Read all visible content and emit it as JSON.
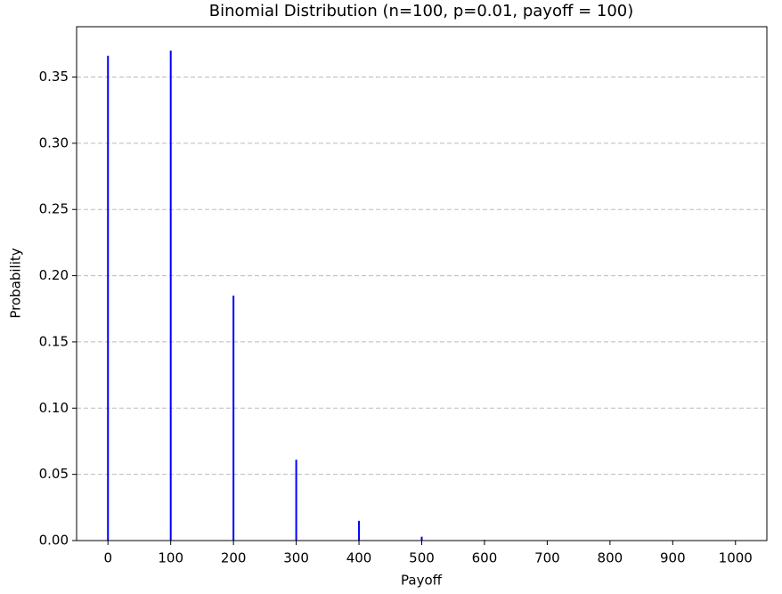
{
  "chart_data": {
    "type": "bar",
    "title": "Binomial Distribution (n=100, p=0.01, payoff = 100)",
    "x_label": "Payoff",
    "y_label": "Probability",
    "x": [
      0,
      100,
      200,
      300,
      400,
      500,
      600,
      700,
      800,
      900,
      1000
    ],
    "values": [
      0.366,
      0.37,
      0.185,
      0.061,
      0.0149,
      0.0029,
      0.0005,
      0.0001,
      0,
      0,
      0
    ],
    "color": "#0000ff",
    "xlim": [
      -50,
      1050
    ],
    "ylim": [
      0,
      0.388
    ],
    "xticks": [
      0,
      100,
      200,
      300,
      400,
      500,
      600,
      700,
      800,
      900,
      1000
    ],
    "yticks": [
      {
        "value": 0,
        "label": "0.00"
      },
      {
        "value": 0.05,
        "label": "0.05"
      },
      {
        "value": 0.1,
        "label": "0.10"
      },
      {
        "value": 0.15,
        "label": "0.15"
      },
      {
        "value": 0.2,
        "label": "0.20"
      },
      {
        "value": 0.25,
        "label": "0.25"
      },
      {
        "value": 0.3,
        "label": "0.30"
      },
      {
        "value": 0.35,
        "label": "0.35"
      }
    ],
    "grid": true
  }
}
